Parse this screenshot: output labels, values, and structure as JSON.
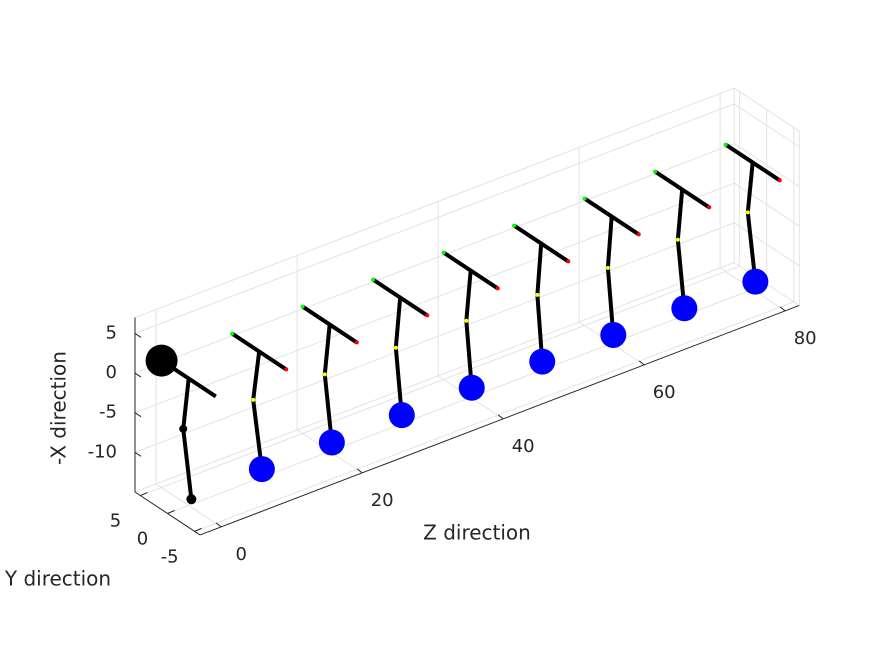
{
  "chart_data": {
    "type": "pendulum3d",
    "x_axis": {
      "label": "-X direction",
      "lim": [
        -15,
        7
      ],
      "ticks": [
        5,
        0,
        -5,
        -10
      ]
    },
    "y_axis": {
      "label": "Y direction",
      "lim": [
        -6,
        6
      ],
      "ticks": [
        5,
        0,
        -5
      ]
    },
    "z_axis": {
      "label": "Z direction",
      "lim": [
        -3,
        82
      ],
      "ticks": [
        0,
        20,
        40,
        60,
        80
      ]
    },
    "grid": true,
    "frames": [
      {
        "z": 0,
        "bar_y": [
          5,
          -5
        ],
        "bar_v": [
          1,
          1
        ],
        "rod_y": [
          0,
          1,
          -0.5
        ],
        "rod_v": [
          1,
          -5.8,
          -14
        ],
        "anchor_color": "#000000",
        "bob_color": "#000000",
        "joint_color": "#000000"
      },
      {
        "z": 10,
        "bar_y": [
          5,
          -5
        ],
        "bar_v": [
          1,
          1
        ],
        "rod_y": [
          0,
          1.1,
          -0.5
        ],
        "rod_v": [
          1,
          -5.6,
          -13.6
        ],
        "bob_color": "#0000ff",
        "joint_color": "#ffff00",
        "bar_end_colors": [
          "#00ff00",
          "#ff0000"
        ]
      },
      {
        "z": 20,
        "bar_y": [
          5,
          -5
        ],
        "bar_v": [
          1,
          1
        ],
        "rod_y": [
          0,
          0.9,
          -0.4
        ],
        "rod_v": [
          1,
          -5.7,
          -13.7
        ],
        "bob_color": "#0000ff",
        "joint_color": "#ffff00",
        "bar_end_colors": [
          "#00ff00",
          "#ff0000"
        ]
      },
      {
        "z": 30,
        "bar_y": [
          5,
          -5
        ],
        "bar_v": [
          1,
          1
        ],
        "rod_y": [
          0,
          0.8,
          -0.3
        ],
        "rod_v": [
          1,
          -5.7,
          -13.7
        ],
        "bob_color": "#0000ff",
        "joint_color": "#ffff00",
        "bar_end_colors": [
          "#00ff00",
          "#ff0000"
        ]
      },
      {
        "z": 40,
        "bar_y": [
          5,
          -5
        ],
        "bar_v": [
          1,
          1
        ],
        "rod_y": [
          0,
          0.8,
          -0.2
        ],
        "rod_v": [
          1,
          -5.7,
          -13.7
        ],
        "bob_color": "#0000ff",
        "joint_color": "#ffff00",
        "bar_end_colors": [
          "#00ff00",
          "#ff0000"
        ]
      },
      {
        "z": 50,
        "bar_y": [
          5,
          -5
        ],
        "bar_v": [
          1,
          1
        ],
        "rod_y": [
          0,
          0.7,
          -0.2
        ],
        "rod_v": [
          1,
          -5.8,
          -13.8
        ],
        "bob_color": "#0000ff",
        "joint_color": "#ffff00",
        "bar_end_colors": [
          "#00ff00",
          "#ff0000"
        ]
      },
      {
        "z": 60,
        "bar_y": [
          5,
          -5
        ],
        "bar_v": [
          1,
          1
        ],
        "rod_y": [
          0,
          0.7,
          -0.3
        ],
        "rod_v": [
          1,
          -5.8,
          -13.8
        ],
        "bob_color": "#0000ff",
        "joint_color": "#ffff00",
        "bar_end_colors": [
          "#00ff00",
          "#ff0000"
        ]
      },
      {
        "z": 70,
        "bar_y": [
          5,
          -5
        ],
        "bar_v": [
          1,
          1
        ],
        "rod_y": [
          0,
          0.8,
          -0.4
        ],
        "rod_v": [
          1,
          -5.7,
          -13.8
        ],
        "bob_color": "#0000ff",
        "joint_color": "#ffff00",
        "bar_end_colors": [
          "#00ff00",
          "#ff0000"
        ]
      },
      {
        "z": 80,
        "bar_y": [
          5,
          -5
        ],
        "bar_v": [
          1,
          1
        ],
        "rod_y": [
          0,
          0.9,
          -0.5
        ],
        "rod_v": [
          1,
          -5.7,
          -13.8
        ],
        "bob_color": "#0000ff",
        "joint_color": "#ffff00",
        "bar_end_colors": [
          "#00ff00",
          "#ff0000"
        ]
      }
    ]
  }
}
